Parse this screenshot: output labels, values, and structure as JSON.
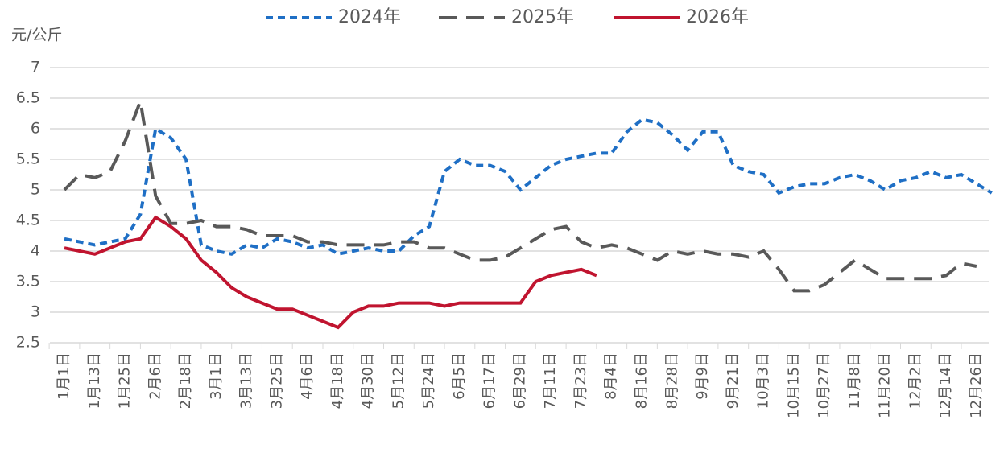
{
  "chart_data": {
    "type": "line",
    "y_label": "元/公斤",
    "categories": [
      "1月1日",
      null,
      "1月13日",
      null,
      "1月25日",
      null,
      "2月6日",
      null,
      "2月18日",
      null,
      "3月1日",
      null,
      "3月13日",
      null,
      "3月25日",
      null,
      "4月6日",
      null,
      "4月18日",
      null,
      "4月30日",
      null,
      "5月12日",
      null,
      "5月24日",
      null,
      "6月5日",
      null,
      "6月17日",
      null,
      "6月29日",
      null,
      "7月11日",
      null,
      "7月23日",
      null,
      "8月4日",
      null,
      "8月16日",
      null,
      "8月28日",
      null,
      "9月9日",
      null,
      "9月21日",
      null,
      "10月3日",
      null,
      "10月15日",
      null,
      "10月27日",
      null,
      "11月8日",
      null,
      "11月20日",
      null,
      "12月2日",
      null,
      "12月14日",
      null,
      "12月26日",
      null
    ],
    "series": [
      {
        "name": "2024年",
        "color": "#1f6fc5",
        "dashed": true,
        "values": [
          4.2,
          4.15,
          4.1,
          4.15,
          4.2,
          4.6,
          6.0,
          5.85,
          5.5,
          4.1,
          4.0,
          3.95,
          4.1,
          4.05,
          4.2,
          4.15,
          4.05,
          4.1,
          3.95,
          4.0,
          4.05,
          4.0,
          4.0,
          4.25,
          4.4,
          5.3,
          5.5,
          5.4,
          5.4,
          5.3,
          5.0,
          5.2,
          5.4,
          5.5,
          5.55,
          5.6,
          5.6,
          5.95,
          6.15,
          6.1,
          5.9,
          5.65,
          5.95,
          5.95,
          5.4,
          5.3,
          5.25,
          4.95,
          5.05,
          5.1,
          5.1,
          5.2,
          5.25,
          5.15,
          5.0,
          5.15,
          5.2,
          5.3,
          5.2,
          5.25,
          5.1,
          4.95
        ]
      },
      {
        "name": "2025年",
        "color": "#595959",
        "dashed": true,
        "values": [
          5.0,
          5.25,
          5.2,
          5.3,
          5.8,
          6.45,
          4.9,
          4.45,
          4.45,
          4.5,
          4.4,
          4.4,
          4.35,
          4.25,
          4.25,
          4.25,
          4.15,
          4.15,
          4.1,
          4.1,
          4.1,
          4.1,
          4.15,
          4.15,
          4.05,
          4.05,
          3.95,
          3.85,
          3.85,
          3.9,
          4.05,
          4.2,
          4.35,
          4.4,
          4.15,
          4.05,
          4.1,
          4.05,
          3.95,
          3.85,
          4.0,
          3.95,
          4.0,
          3.95,
          3.95,
          3.9,
          4.0,
          3.7,
          3.35,
          3.35,
          3.45,
          3.65,
          3.85,
          3.7,
          3.55,
          3.55,
          3.55,
          3.55,
          3.6,
          3.8,
          3.75,
          null
        ]
      },
      {
        "name": "2026年",
        "color": "#c0142f",
        "dashed": false,
        "values": [
          4.05,
          4.0,
          3.95,
          4.05,
          4.15,
          4.2,
          4.55,
          4.4,
          4.2,
          3.85,
          3.65,
          3.4,
          3.25,
          3.15,
          3.05,
          3.05,
          2.95,
          2.85,
          2.75,
          3.0,
          3.1,
          3.1,
          3.15,
          3.15,
          3.15,
          3.1,
          3.15,
          3.15,
          3.15,
          3.15,
          3.15,
          3.5,
          3.6,
          3.65,
          3.7,
          3.6,
          null,
          null,
          null,
          null,
          null,
          null,
          null,
          null,
          null,
          null,
          null,
          null,
          null,
          null,
          null,
          null,
          null,
          null,
          null,
          null,
          null,
          null,
          null,
          null,
          null,
          null
        ]
      }
    ],
    "ylim": [
      2.5,
      7
    ],
    "yticks": [
      2.5,
      3,
      3.5,
      4,
      4.5,
      5,
      5.5,
      6,
      6.5,
      7
    ],
    "grid": true,
    "legend": "top"
  }
}
